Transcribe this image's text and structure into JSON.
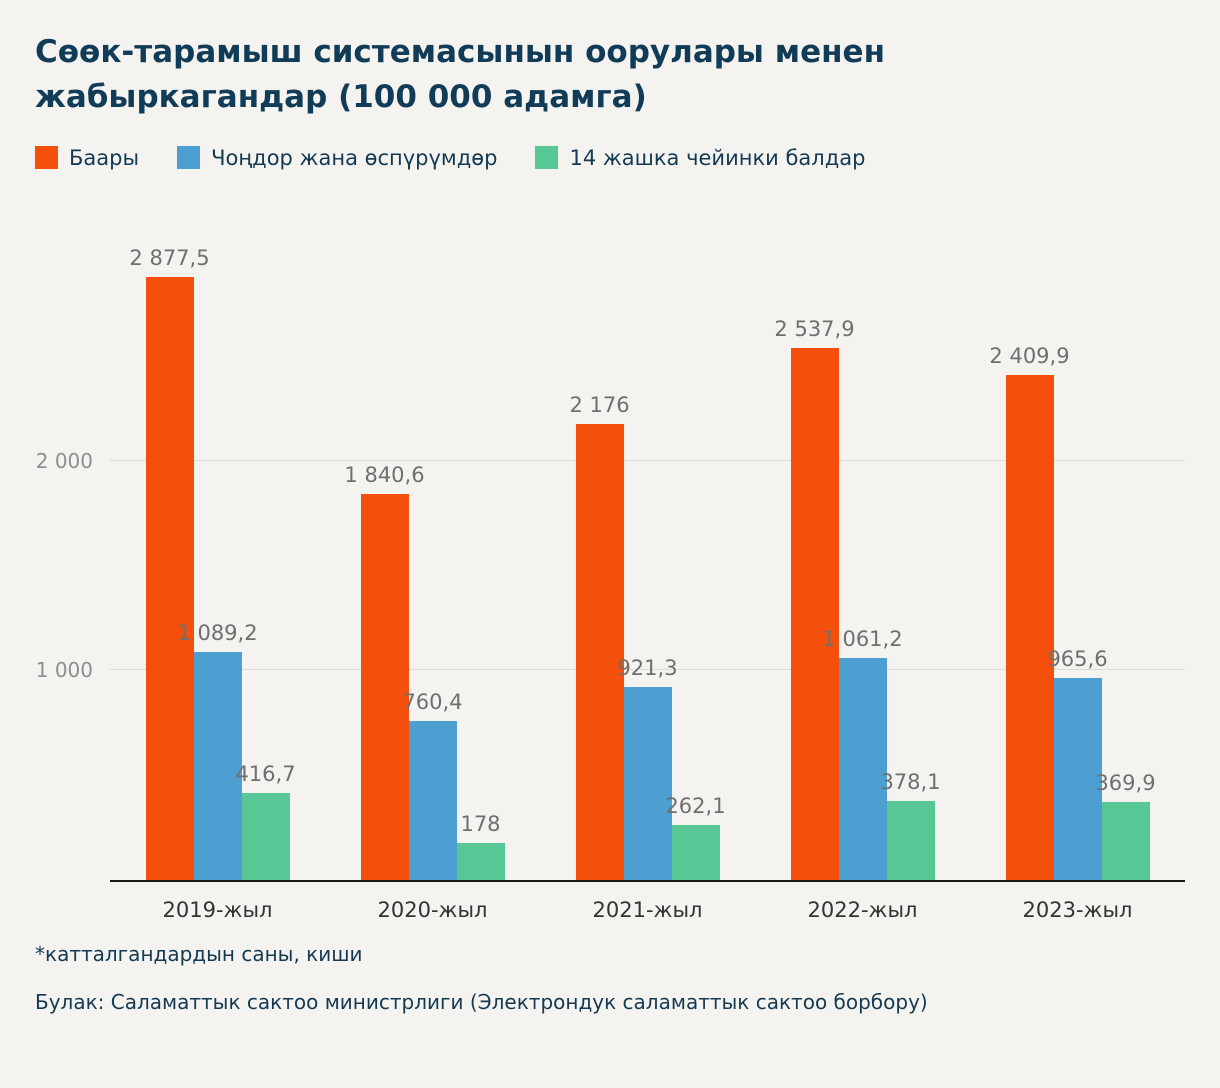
{
  "chart_data": {
    "type": "bar",
    "title": "Сөөк-тарамыш системасынын оорулары менен жабыркагандар (100 000 адамга)",
    "categories": [
      "2019-жыл",
      "2020-жыл",
      "2021-жыл",
      "2022-жыл",
      "2023-жыл"
    ],
    "series": [
      {
        "name": "Баары",
        "color": "#f4500c",
        "values": [
          2877.5,
          1840.6,
          2176,
          2537.9,
          2409.9
        ],
        "labels": [
          "2 877,5",
          "1 840,6",
          "2 176",
          "2 537,9",
          "2 409,9"
        ]
      },
      {
        "name": "Чоңдор жана өспүрүмдөр",
        "color": "#4e9fd1",
        "values": [
          1089.2,
          760.4,
          921.3,
          1061.2,
          965.6
        ],
        "labels": [
          "1 089,2",
          "760,4",
          "921,3",
          "1 061,2",
          "965,6"
        ]
      },
      {
        "name": "14 жашка чейинки балдар",
        "color": "#57c795",
        "values": [
          416.7,
          178,
          262.1,
          378.1,
          369.9
        ],
        "labels": [
          "416,7",
          "178",
          "262,1",
          "378,1",
          "369,9"
        ]
      }
    ],
    "ylim": [
      0,
      2950
    ],
    "yticks": [
      {
        "value": 1000,
        "label": "1 000"
      },
      {
        "value": 2000,
        "label": "2 000"
      }
    ],
    "grid": true,
    "legend_position": "top"
  },
  "footnotes": {
    "note": "*катталгандардын саны, киши",
    "source": "Булак: Саламаттык сактоо министрлиги (Электрондук саламаттык сактоо борбору)"
  }
}
